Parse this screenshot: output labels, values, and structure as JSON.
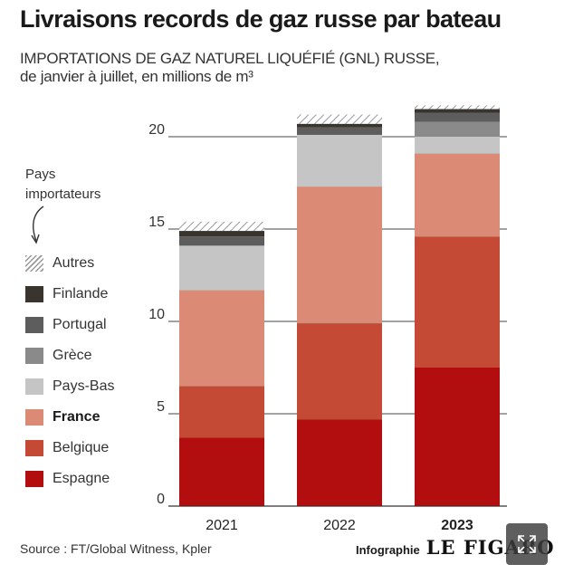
{
  "header": {
    "title": "Livraisons records de gaz russe par bateau",
    "subtitle_line1": "IMPORTATIONS DE GAZ NATUREL LIQUÉFIÉ (GNL) RUSSE,",
    "subtitle_line2": "de janvier à juillet, en millions de m³"
  },
  "legend_caption": {
    "line1": "Pays",
    "line2": "importateurs"
  },
  "footer": {
    "source": "Source : FT/Global Witness, Kpler",
    "infographie": "Infographie",
    "logo": "LE FIGARO"
  },
  "controls": {
    "expand_icon": "expand-arrows-icon"
  },
  "colors": {
    "Espagne": "#b20e10",
    "Belgique": "#c54a35",
    "France": "#db8a75",
    "Pays-Bas": "#c5c5c5",
    "Grèce": "#8a8a8a",
    "Portugal": "#5d5d5d",
    "Finlande": "#3a342f",
    "Autres": "hatch"
  },
  "chart_data": {
    "type": "bar",
    "stacked": true,
    "categories": [
      "2021",
      "2022",
      "2023"
    ],
    "highlight_category": "2023",
    "yticks": [
      0,
      5,
      10,
      15,
      20
    ],
    "ylim": [
      0,
      21.5
    ],
    "grid": true,
    "legend_position": "left",
    "series": [
      {
        "name": "Espagne",
        "values": [
          3.7,
          4.7,
          7.5
        ]
      },
      {
        "name": "Belgique",
        "values": [
          2.8,
          5.2,
          7.1
        ]
      },
      {
        "name": "France",
        "values": [
          5.2,
          7.4,
          4.5
        ]
      },
      {
        "name": "Pays-Bas",
        "values": [
          2.4,
          2.8,
          0.9
        ]
      },
      {
        "name": "Grèce",
        "values": [
          0.0,
          0.0,
          0.8
        ]
      },
      {
        "name": "Portugal",
        "values": [
          0.5,
          0.4,
          0.5
        ]
      },
      {
        "name": "Finlande",
        "values": [
          0.3,
          0.2,
          0.2
        ]
      },
      {
        "name": "Autres",
        "values": [
          0.5,
          0.5,
          0.2
        ]
      }
    ],
    "legend_order": [
      "Autres",
      "Finlande",
      "Portugal",
      "Grèce",
      "Pays-Bas",
      "France",
      "Belgique",
      "Espagne"
    ],
    "legend_bold": "France"
  }
}
